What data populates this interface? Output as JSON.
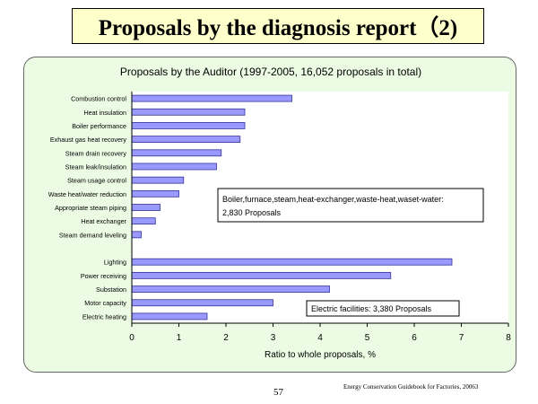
{
  "slide": {
    "title": "Proposals by the diagnosis report（2)",
    "page_number": "57",
    "source": "Energy Conservation Guidebook for Factories, 20063"
  },
  "colors": {
    "bar_fill": "#9999ff",
    "bar_stroke": "#333399",
    "panel_bg": "#ecfbe4",
    "title_bg": "#ffffcc"
  },
  "chart_data": {
    "type": "bar",
    "orientation": "horizontal",
    "title": "Proposals by the Auditor (1997-2005, 16,052 proposals in total)",
    "xlabel": "Ratio to whole proposals, %",
    "xlim": [
      0,
      8
    ],
    "xticks": [
      "0",
      "1",
      "2",
      "3",
      "4",
      "5",
      "6",
      "7",
      "8"
    ],
    "grid": false,
    "categories": [
      "Combustion control",
      "Heat insulation",
      "Boiler performance",
      "Exhaust gas heat recovery",
      "Steam drain recovery",
      "Steam leak/insulation",
      "Steam usage control",
      "Waste heat/water reduction",
      "Appropriate steam piping",
      "Heat exchanger",
      "Steam demand leveling",
      "",
      "Lighting",
      "Power receiving",
      "Substation",
      "Motor capacity",
      "Electric heating"
    ],
    "values": [
      3.4,
      2.4,
      2.4,
      2.3,
      1.9,
      1.8,
      1.1,
      1.0,
      0.6,
      0.5,
      0.2,
      null,
      6.8,
      5.5,
      4.2,
      3.0,
      1.6
    ],
    "annotations": [
      {
        "text_line1": "Boiler,furnace,steam,heat-exchanger,waste-heat,waset-water:",
        "text_line2": "2,830 Proposals"
      },
      {
        "text": "Electric facilities: 3,380 Proposals"
      }
    ]
  }
}
